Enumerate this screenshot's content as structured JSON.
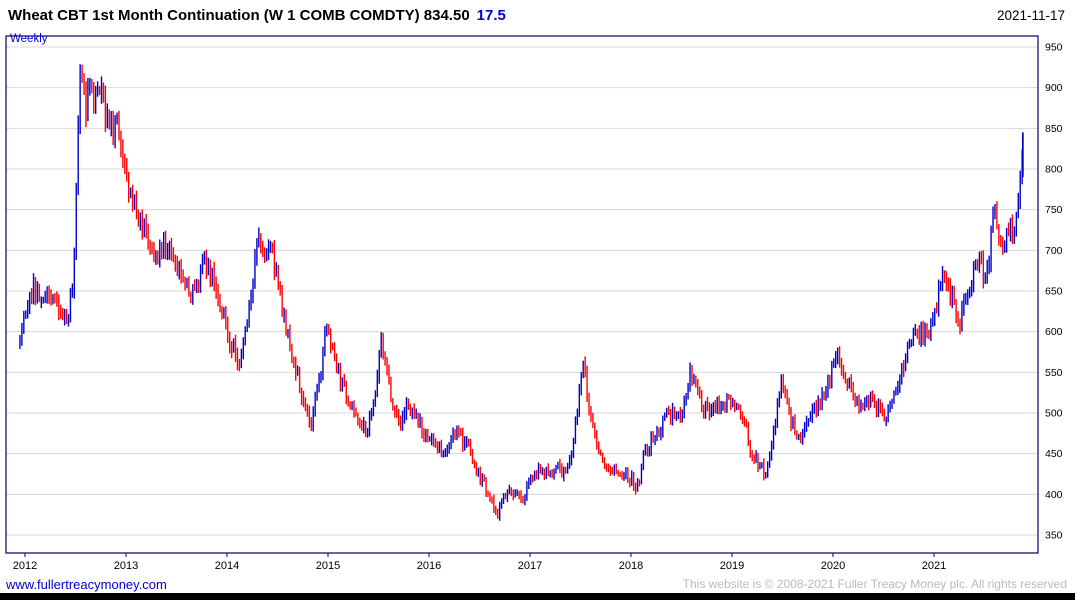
{
  "header": {
    "title": "Wheat CBT 1st Month Continuation (W 1 COMB COMDTY) 834.50",
    "change": "17.5",
    "date": "2021-11-17"
  },
  "chart": {
    "frequency_label": "Weekly"
  },
  "footer": {
    "site_link": "www.fullertreacymoney.com",
    "copyright": "This website is © 2008-2021 Fuller Treacy Money plc. All rights reserved"
  },
  "chart_data": {
    "type": "ohlc-bar",
    "title": "Wheat CBT 1st Month Continuation (W 1 COMB COMDTY)",
    "frequency": "Weekly",
    "last_price": 834.5,
    "last_change": 17.5,
    "as_of_date": "2021-11-17",
    "x_ticks": [
      2012,
      2013,
      2014,
      2015,
      2016,
      2017,
      2018,
      2019,
      2020,
      2021
    ],
    "y_ticks": [
      350,
      400,
      450,
      500,
      550,
      600,
      650,
      700,
      750,
      800,
      850,
      900,
      950
    ],
    "ylim": [
      350,
      950
    ],
    "xlim": [
      2011.812,
      2022.03
    ],
    "t_range": [
      2011.95,
      2021.88
    ],
    "grid_on": true,
    "legend": "none",
    "up_color": "#0000cc",
    "down_color": "#ff0000",
    "grid_color": "#d8d8d8",
    "frame_color": "#000066",
    "last_bar": {
      "t": 2021.88,
      "high": 845,
      "low": 790
    },
    "series": [
      {
        "name": "W 1 COMB COMDTY weekly close (approx.)",
        "points": [
          [
            2011.95,
            595
          ],
          [
            2012.0,
            615
          ],
          [
            2012.08,
            655
          ],
          [
            2012.17,
            640
          ],
          [
            2012.25,
            655
          ],
          [
            2012.33,
            628
          ],
          [
            2012.42,
            612
          ],
          [
            2012.48,
            660
          ],
          [
            2012.52,
            840
          ],
          [
            2012.55,
            935
          ],
          [
            2012.6,
            870
          ],
          [
            2012.65,
            905
          ],
          [
            2012.71,
            880
          ],
          [
            2012.75,
            900
          ],
          [
            2012.83,
            855
          ],
          [
            2012.92,
            845
          ],
          [
            2013.0,
            790
          ],
          [
            2013.08,
            755
          ],
          [
            2013.17,
            725
          ],
          [
            2013.25,
            700
          ],
          [
            2013.33,
            695
          ],
          [
            2013.42,
            712
          ],
          [
            2013.5,
            690
          ],
          [
            2013.58,
            655
          ],
          [
            2013.63,
            648
          ],
          [
            2013.71,
            660
          ],
          [
            2013.79,
            688
          ],
          [
            2013.88,
            655
          ],
          [
            2013.96,
            622
          ],
          [
            2014.04,
            585
          ],
          [
            2014.13,
            562
          ],
          [
            2014.21,
            615
          ],
          [
            2014.29,
            700
          ],
          [
            2014.33,
            718
          ],
          [
            2014.38,
            680
          ],
          [
            2014.44,
            705
          ],
          [
            2014.5,
            660
          ],
          [
            2014.58,
            608
          ],
          [
            2014.67,
            560
          ],
          [
            2014.75,
            522
          ],
          [
            2014.83,
            482
          ],
          [
            2014.92,
            548
          ],
          [
            2014.98,
            605
          ],
          [
            2015.04,
            578
          ],
          [
            2015.13,
            538
          ],
          [
            2015.21,
            518
          ],
          [
            2015.29,
            498
          ],
          [
            2015.38,
            478
          ],
          [
            2015.46,
            515
          ],
          [
            2015.52,
            592
          ],
          [
            2015.56,
            570
          ],
          [
            2015.63,
            512
          ],
          [
            2015.71,
            482
          ],
          [
            2015.79,
            508
          ],
          [
            2015.88,
            492
          ],
          [
            2015.96,
            472
          ],
          [
            2016.04,
            462
          ],
          [
            2016.13,
            452
          ],
          [
            2016.21,
            466
          ],
          [
            2016.29,
            476
          ],
          [
            2016.38,
            458
          ],
          [
            2016.46,
            432
          ],
          [
            2016.54,
            412
          ],
          [
            2016.63,
            388
          ],
          [
            2016.67,
            372
          ],
          [
            2016.75,
            404
          ],
          [
            2016.83,
            400
          ],
          [
            2016.92,
            394
          ],
          [
            2017.0,
            412
          ],
          [
            2017.08,
            432
          ],
          [
            2017.17,
            424
          ],
          [
            2017.25,
            436
          ],
          [
            2017.33,
            428
          ],
          [
            2017.42,
            446
          ],
          [
            2017.5,
            542
          ],
          [
            2017.53,
            572
          ],
          [
            2017.58,
            505
          ],
          [
            2017.67,
            452
          ],
          [
            2017.75,
            436
          ],
          [
            2017.83,
            430
          ],
          [
            2017.92,
            424
          ],
          [
            2018.0,
            418
          ],
          [
            2018.06,
            408
          ],
          [
            2018.13,
            448
          ],
          [
            2018.21,
            468
          ],
          [
            2018.29,
            482
          ],
          [
            2018.38,
            502
          ],
          [
            2018.46,
            492
          ],
          [
            2018.54,
            522
          ],
          [
            2018.58,
            552
          ],
          [
            2018.63,
            538
          ],
          [
            2018.71,
            502
          ],
          [
            2018.79,
            506
          ],
          [
            2018.88,
            510
          ],
          [
            2018.96,
            516
          ],
          [
            2019.04,
            506
          ],
          [
            2019.13,
            488
          ],
          [
            2019.17,
            456
          ],
          [
            2019.25,
            442
          ],
          [
            2019.33,
            424
          ],
          [
            2019.42,
            482
          ],
          [
            2019.5,
            542
          ],
          [
            2019.58,
            492
          ],
          [
            2019.67,
            466
          ],
          [
            2019.75,
            486
          ],
          [
            2019.83,
            506
          ],
          [
            2019.92,
            528
          ],
          [
            2020.0,
            556
          ],
          [
            2020.05,
            572
          ],
          [
            2020.13,
            542
          ],
          [
            2020.21,
            518
          ],
          [
            2020.27,
            502
          ],
          [
            2020.33,
            522
          ],
          [
            2020.42,
            512
          ],
          [
            2020.5,
            490
          ],
          [
            2020.58,
            512
          ],
          [
            2020.67,
            546
          ],
          [
            2020.75,
            582
          ],
          [
            2020.83,
            602
          ],
          [
            2020.92,
            592
          ],
          [
            2021.0,
            622
          ],
          [
            2021.08,
            662
          ],
          [
            2021.17,
            642
          ],
          [
            2021.25,
            612
          ],
          [
            2021.33,
            652
          ],
          [
            2021.42,
            682
          ],
          [
            2021.46,
            705
          ],
          [
            2021.5,
            655
          ],
          [
            2021.54,
            682
          ],
          [
            2021.58,
            752
          ],
          [
            2021.63,
            732
          ],
          [
            2021.67,
            702
          ],
          [
            2021.75,
            730
          ],
          [
            2021.79,
            722
          ],
          [
            2021.83,
            762
          ],
          [
            2021.88,
            834.5
          ]
        ]
      }
    ]
  }
}
